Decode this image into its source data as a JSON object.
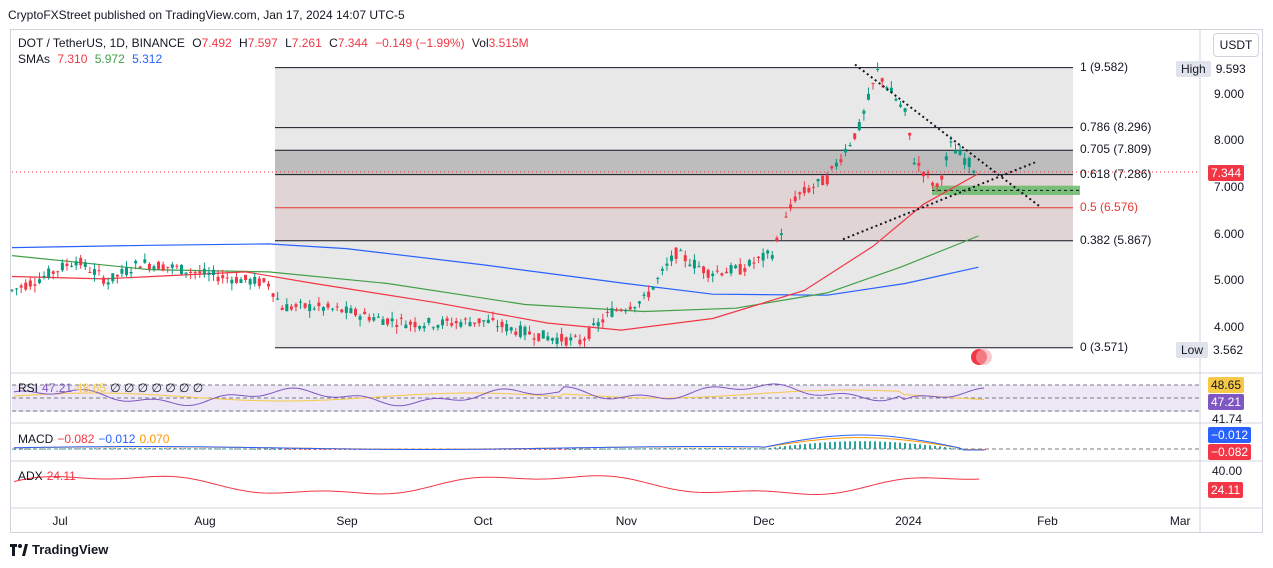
{
  "header": {
    "published": "CryptoFXStreet published on TradingView.com, Jan 17, 2024 14:07 UTC-5"
  },
  "legend": {
    "symbol": "DOT / TetherUS, 1D, BINANCE",
    "open_label": "O",
    "open": "7.492",
    "high_label": "H",
    "high": "7.597",
    "low_label": "L",
    "low": "7.261",
    "close_label": "C",
    "close": "7.344",
    "change": "−0.149 (−1.99%)",
    "vol_label": "Vol",
    "vol": "3.515M",
    "sma_label": "SMAs",
    "sma1": "7.310",
    "sma2": "5.972",
    "sma3": "5.312"
  },
  "currency_button": "USDT",
  "price_axis": {
    "ticks": [
      "9.000",
      "8.000",
      "7.000",
      "6.000",
      "5.000",
      "4.000"
    ]
  },
  "time_axis": {
    "ticks": [
      "Jul",
      "Aug",
      "Sep",
      "Oct",
      "Nov",
      "Dec",
      "2024",
      "Feb",
      "Mar"
    ]
  },
  "current_price": "7.344",
  "high_tag": {
    "label": "High",
    "value": "9.593"
  },
  "low_tag": {
    "label": "Low",
    "value": "3.562"
  },
  "fib_levels": [
    {
      "label": "1 (9.582)",
      "price": 9.582
    },
    {
      "label": "0.786 (8.296)",
      "price": 8.296
    },
    {
      "label": "0.705 (7.809)",
      "price": 7.809
    },
    {
      "label": "0.618 (7.286)",
      "price": 7.286
    },
    {
      "label": "0.5 (6.576)",
      "price": 6.576
    },
    {
      "label": "0.382 (5.867)",
      "price": 5.867
    },
    {
      "label": "0 (3.571)",
      "price": 3.571
    }
  ],
  "rsi": {
    "label": "RSI",
    "v1": "47.21",
    "v2": "48.65",
    "rest": "∅ ∅ ∅ ∅ ∅ ∅ ∅",
    "tag1": "48.65",
    "tag2": "47.21",
    "level": "41.74"
  },
  "macd": {
    "label": "MACD",
    "v1": "−0.082",
    "v2": "−0.012",
    "v3": "0.070",
    "tag1": "−0.012",
    "tag2": "−0.082"
  },
  "adx": {
    "label": "ADX",
    "v1": "24.11",
    "axis": "40.00",
    "tag": "24.11"
  },
  "footer": {
    "brand": "TradingView"
  },
  "colors": {
    "up": "#089981",
    "down": "#f23645",
    "sma_fast": "#f23645",
    "sma_mid": "#43a047",
    "sma_slow": "#2962ff",
    "demand_zone": "#66bb6a"
  },
  "chart_data": {
    "type": "candlestick",
    "title": "DOT / TetherUS, 1D, BINANCE",
    "ylim": [
      3.2,
      10.0
    ],
    "y_ticks": [
      4,
      5,
      6,
      7,
      8,
      9
    ],
    "x_labels": [
      "Jul",
      "Aug",
      "Sep",
      "Oct",
      "Nov",
      "Dec",
      "2024",
      "Feb",
      "Mar"
    ],
    "close_path": [
      [
        "Jun 20",
        4.8
      ],
      [
        "Jun 27",
        5.1
      ],
      [
        "Jul 4",
        5.45
      ],
      [
        "Jul 11",
        5.0
      ],
      [
        "Jul 18",
        5.4
      ],
      [
        "Jul 25",
        5.3
      ],
      [
        "Aug 1",
        5.15
      ],
      [
        "Aug 8",
        5.05
      ],
      [
        "Aug 15",
        4.95
      ],
      [
        "Aug 18",
        4.45
      ],
      [
        "Aug 25",
        4.45
      ],
      [
        "Sep 1",
        4.35
      ],
      [
        "Sep 8",
        4.2
      ],
      [
        "Sep 15",
        4.1
      ],
      [
        "Sep 22",
        4.1
      ],
      [
        "Oct 1",
        4.15
      ],
      [
        "Oct 8",
        3.95
      ],
      [
        "Oct 15",
        3.8
      ],
      [
        "Oct 22",
        3.7
      ],
      [
        "Oct 29",
        4.35
      ],
      [
        "Nov 5",
        4.6
      ],
      [
        "Nov 12",
        5.6
      ],
      [
        "Nov 19",
        5.2
      ],
      [
        "Nov 26",
        5.25
      ],
      [
        "Dec 3",
        5.6
      ],
      [
        "Dec 8",
        6.8
      ],
      [
        "Dec 15",
        7.2
      ],
      [
        "Dec 22",
        8.3
      ],
      [
        "Dec 26",
        9.5
      ],
      [
        "Jan 1",
        8.6
      ],
      [
        "Jan 3",
        7.6
      ],
      [
        "Jan 8",
        7.0
      ],
      [
        "Jan 11",
        7.9
      ],
      [
        "Jan 17",
        7.344
      ]
    ],
    "sma_fast_last": 7.31,
    "sma_mid_last": 5.972,
    "sma_slow_last": 5.312,
    "demand_zone": [
      6.85,
      7.05
    ],
    "rsi_levels": [
      48.65,
      47.21,
      41.74
    ],
    "adx_last": 24.11
  }
}
